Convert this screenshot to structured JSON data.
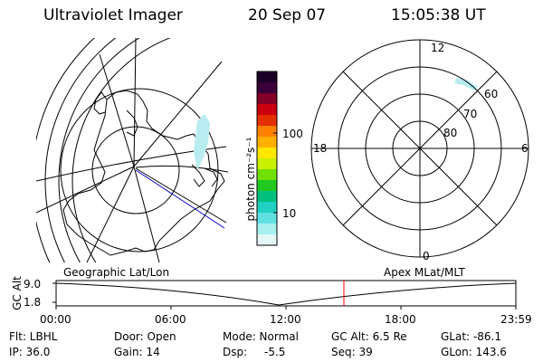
{
  "header": {
    "instrument": "Ultraviolet Imager",
    "date": "20 Sep 07",
    "time": "15:05:38 UT"
  },
  "colorbar": {
    "unit_label": "photon cm⁻²s⁻¹",
    "ticks": [
      "100",
      "10"
    ]
  },
  "polar_plot": {
    "mlt_labels": {
      "top": "12",
      "left": "18",
      "right": "6",
      "bottom": "0"
    },
    "mlat_labels": [
      "60",
      "70",
      "80"
    ]
  },
  "map_captions": {
    "geographic": "Geographic Lat/Lon",
    "apex": "Apex MLat/MLT"
  },
  "timeline": {
    "ylabel": "GC Alt",
    "yticks": [
      "9.0",
      "1.8"
    ],
    "xticks": [
      "00:00",
      "06:00",
      "12:00",
      "18:00",
      "23:59"
    ],
    "current_marker_time": "15:05:38",
    "marker_color": "#ff0000"
  },
  "status": {
    "flt": "Flt: LBHL",
    "ip": "IP: 36.0",
    "door": "Door: Open",
    "gain": "Gain: 14",
    "mode": "Mode: Normal",
    "dsp_label": "Dsp:",
    "dsp_value": "-5.5",
    "gc_alt": "GC Alt: 6.5 Re",
    "seq": "Seq: 39",
    "glat": "GLat: -86.1",
    "glon": "GLon: 143.6"
  },
  "colors": {
    "aurora": "#b8ecf0",
    "track": "#0000cc"
  }
}
